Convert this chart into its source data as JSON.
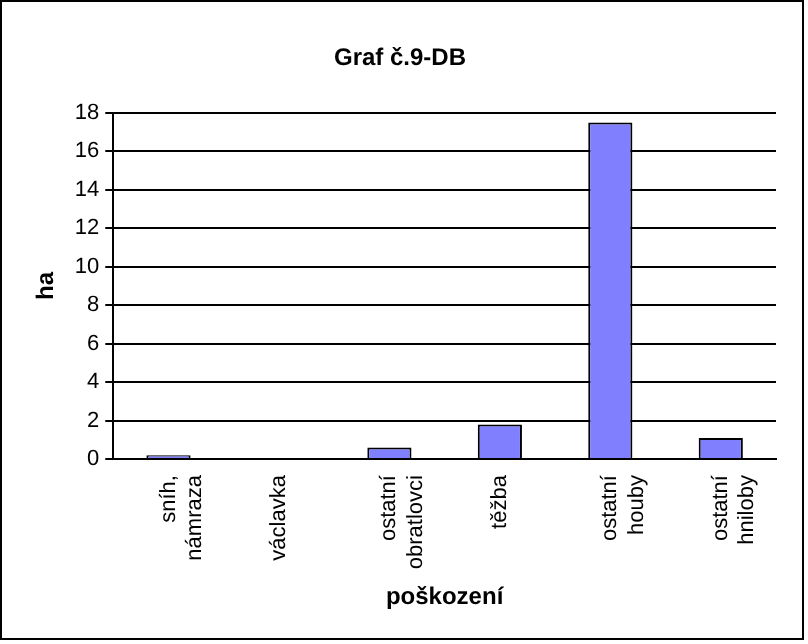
{
  "chart_data": {
    "type": "bar",
    "title": "Graf č.9-DB",
    "xlabel": "poškození",
    "ylabel": "ha",
    "categories": [
      "sníh, námraza",
      "václavka",
      "ostatní obratlovci",
      "těžba",
      "ostatní houby",
      "ostatní hniloby"
    ],
    "values": [
      0.2,
      0,
      0.6,
      1.8,
      17.5,
      1.1
    ],
    "color": "#8080ff",
    "ylim": [
      0,
      18
    ],
    "yticks": [
      0,
      2,
      4,
      6,
      8,
      10,
      12,
      14,
      16,
      18
    ],
    "grid": "y",
    "legend": false
  }
}
